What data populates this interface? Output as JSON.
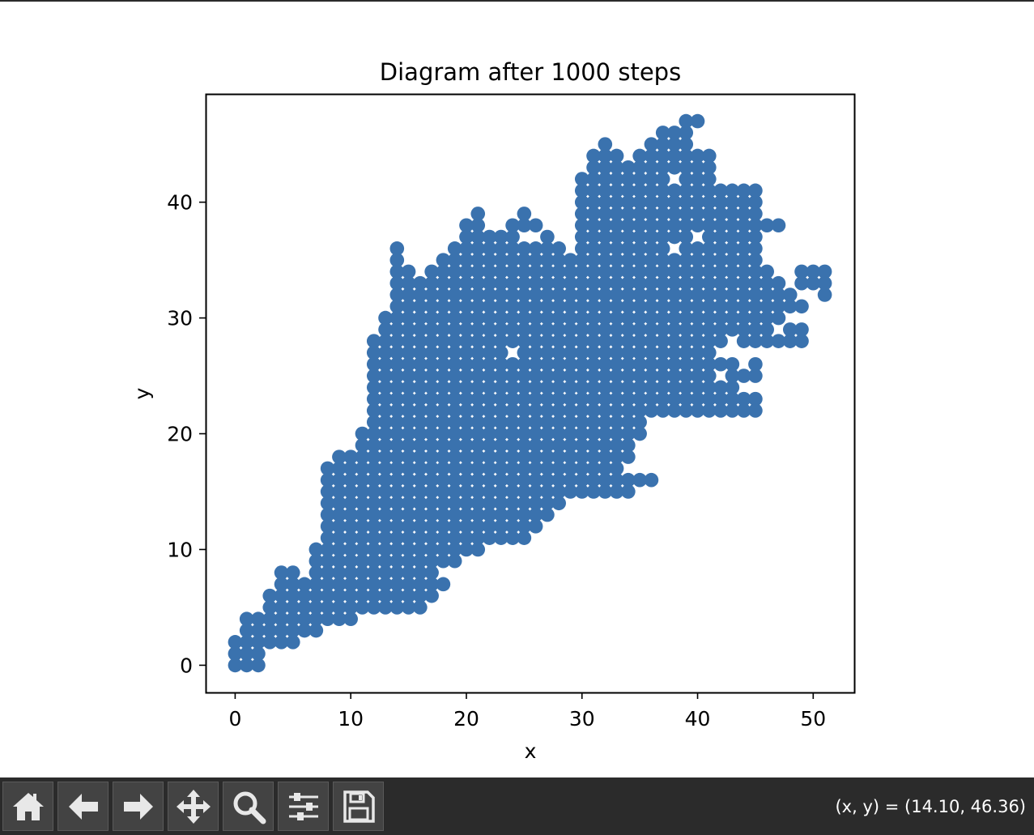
{
  "chart_data": {
    "type": "scatter",
    "title": "Diagram after 1000 steps",
    "xlabel": "x",
    "ylabel": "y",
    "xlim": [
      -2.55,
      53.55
    ],
    "ylim": [
      -2.35,
      49.35
    ],
    "xticks": [
      0,
      10,
      20,
      30,
      40,
      50
    ],
    "yticks": [
      0,
      10,
      20,
      30,
      40
    ],
    "marker_color": "#3a72ae",
    "grid": false,
    "points_rows": [
      {
        "y": 47,
        "x": [
          [
            39,
            40
          ]
        ]
      },
      {
        "y": 46,
        "x": [
          [
            37,
            39
          ]
        ]
      },
      {
        "y": 45,
        "x": [
          [
            32,
            32
          ],
          [
            36,
            39
          ]
        ]
      },
      {
        "y": 44,
        "x": [
          [
            31,
            33
          ],
          [
            35,
            41
          ]
        ]
      },
      {
        "y": 43,
        "x": [
          [
            31,
            41
          ]
        ]
      },
      {
        "y": 42,
        "x": [
          [
            30,
            41
          ]
        ]
      },
      {
        "y": 41,
        "x": [
          [
            30,
            45
          ]
        ]
      },
      {
        "y": 40,
        "x": [
          [
            30,
            45
          ]
        ]
      },
      {
        "y": 39,
        "x": [
          [
            21,
            21
          ],
          [
            25,
            25
          ],
          [
            30,
            45
          ]
        ]
      },
      {
        "y": 38,
        "x": [
          [
            20,
            21
          ],
          [
            24,
            26
          ],
          [
            30,
            47
          ]
        ]
      },
      {
        "y": 37,
        "x": [
          [
            20,
            24
          ],
          [
            27,
            27
          ],
          [
            30,
            45
          ]
        ]
      },
      {
        "y": 36,
        "x": [
          [
            14,
            14
          ],
          [
            19,
            28
          ],
          [
            30,
            45
          ]
        ]
      },
      {
        "y": 35,
        "x": [
          [
            14,
            14
          ],
          [
            18,
            45
          ]
        ]
      },
      {
        "y": 34,
        "x": [
          [
            14,
            15
          ],
          [
            17,
            46
          ],
          [
            49,
            51
          ]
        ]
      },
      {
        "y": 33,
        "x": [
          [
            14,
            47
          ],
          [
            49,
            51
          ]
        ]
      },
      {
        "y": 32,
        "x": [
          [
            14,
            48
          ],
          [
            51,
            51
          ]
        ]
      },
      {
        "y": 31,
        "x": [
          [
            14,
            49
          ]
        ]
      },
      {
        "y": 30,
        "x": [
          [
            13,
            47
          ]
        ]
      },
      {
        "y": 29,
        "x": [
          [
            13,
            46
          ],
          [
            48,
            49
          ]
        ]
      },
      {
        "y": 28,
        "x": [
          [
            12,
            49
          ]
        ]
      },
      {
        "y": 27,
        "x": [
          [
            12,
            41
          ]
        ]
      },
      {
        "y": 26,
        "x": [
          [
            12,
            43
          ],
          [
            45,
            45
          ]
        ]
      },
      {
        "y": 25,
        "x": [
          [
            12,
            45
          ]
        ]
      },
      {
        "y": 24,
        "x": [
          [
            12,
            43
          ]
        ]
      },
      {
        "y": 23,
        "x": [
          [
            12,
            45
          ]
        ]
      },
      {
        "y": 22,
        "x": [
          [
            12,
            45
          ]
        ]
      },
      {
        "y": 21,
        "x": [
          [
            12,
            35
          ]
        ]
      },
      {
        "y": 20,
        "x": [
          [
            11,
            35
          ]
        ]
      },
      {
        "y": 19,
        "x": [
          [
            11,
            34
          ]
        ]
      },
      {
        "y": 18,
        "x": [
          [
            9,
            34
          ]
        ]
      },
      {
        "y": 17,
        "x": [
          [
            8,
            33
          ]
        ]
      },
      {
        "y": 16,
        "x": [
          [
            8,
            36
          ]
        ]
      },
      {
        "y": 15,
        "x": [
          [
            8,
            34
          ]
        ]
      },
      {
        "y": 14,
        "x": [
          [
            8,
            28
          ]
        ]
      },
      {
        "y": 13,
        "x": [
          [
            8,
            27
          ]
        ]
      },
      {
        "y": 12,
        "x": [
          [
            8,
            26
          ]
        ]
      },
      {
        "y": 11,
        "x": [
          [
            8,
            25
          ]
        ]
      },
      {
        "y": 10,
        "x": [
          [
            7,
            21
          ]
        ]
      },
      {
        "y": 9,
        "x": [
          [
            7,
            19
          ]
        ]
      },
      {
        "y": 8,
        "x": [
          [
            4,
            5
          ],
          [
            7,
            17
          ]
        ]
      },
      {
        "y": 7,
        "x": [
          [
            4,
            18
          ]
        ]
      },
      {
        "y": 6,
        "x": [
          [
            3,
            17
          ]
        ]
      },
      {
        "y": 5,
        "x": [
          [
            3,
            16
          ]
        ]
      },
      {
        "y": 4,
        "x": [
          [
            1,
            10
          ]
        ]
      },
      {
        "y": 3,
        "x": [
          [
            1,
            7
          ]
        ]
      },
      {
        "y": 2,
        "x": [
          [
            0,
            5
          ]
        ]
      },
      {
        "y": 1,
        "x": [
          [
            0,
            2
          ]
        ]
      },
      {
        "y": 0,
        "x": [
          [
            0,
            2
          ]
        ]
      }
    ],
    "holes": [
      [
        38,
        42
      ],
      [
        40,
        37
      ],
      [
        38,
        36
      ],
      [
        24,
        27
      ],
      [
        42,
        25
      ],
      [
        43,
        28
      ],
      [
        44,
        24
      ],
      [
        45,
        24
      ]
    ]
  },
  "toolbar": {
    "buttons": [
      {
        "name": "home-button",
        "icon": "home-icon"
      },
      {
        "name": "back-button",
        "icon": "arrow-left-icon"
      },
      {
        "name": "forward-button",
        "icon": "arrow-right-icon"
      },
      {
        "name": "pan-button",
        "icon": "move-icon"
      },
      {
        "name": "zoom-button",
        "icon": "magnifier-icon"
      },
      {
        "name": "configure-subplots-button",
        "icon": "sliders-icon"
      },
      {
        "name": "save-button",
        "icon": "floppy-disk-icon"
      }
    ],
    "coords_text": "(x, y) = (14.10, 46.36)"
  }
}
